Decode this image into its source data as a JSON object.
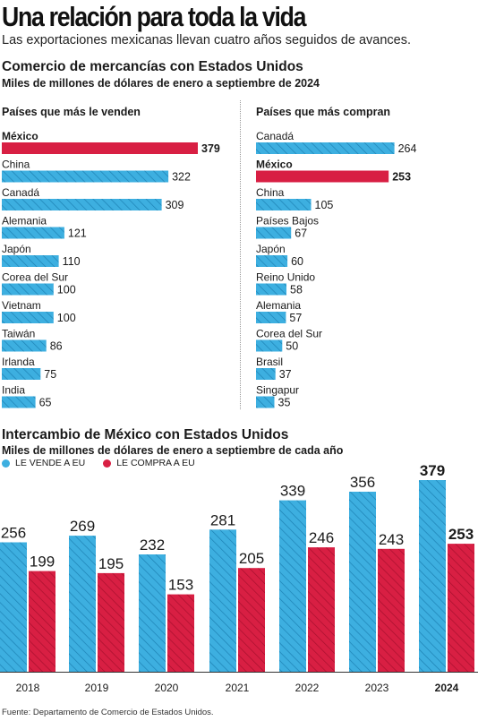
{
  "headline": "Una relación para toda la vida",
  "subheadline": "Las exportaciones mexicanas llevan cuatro años seguidos de avances.",
  "section1": {
    "title": "Comercio de mercancías con Estados Unidos",
    "subtitle": "Miles de millones de dólares de enero a septiembre de 2024"
  },
  "section2": {
    "title": "Intercambio de México con Estados Unidos",
    "subtitle": "Miles de millones de dólares de enero a septiembre de cada año",
    "legend": {
      "sells": "LE VENDE A EU",
      "buys": "LE COMPRA A EU"
    }
  },
  "source": "Fuente: Departamento de Comercio de Estados Unidos.",
  "colors": {
    "blue": "#3dafe0",
    "red": "#d81f43",
    "stripe_blue": "#1d82b5",
    "stripe_red": "#a8102e"
  },
  "chart_data": [
    {
      "type": "bar",
      "orientation": "horizontal",
      "title": "Países que más le venden",
      "categories": [
        "México",
        "China",
        "Canadá",
        "Alemania",
        "Japón",
        "Corea del Sur",
        "Vietnam",
        "Taiwán",
        "Irlanda",
        "India"
      ],
      "values": [
        379,
        322,
        309,
        121,
        110,
        100,
        100,
        86,
        75,
        65
      ],
      "highlight": "México"
    },
    {
      "type": "bar",
      "orientation": "horizontal",
      "title": "Países que más compran",
      "categories": [
        "Canadá",
        "México",
        "China",
        "Países Bajos",
        "Japón",
        "Reino Unido",
        "Alemania",
        "Corea del Sur",
        "Brasil",
        "Singapur"
      ],
      "values": [
        264,
        253,
        105,
        67,
        60,
        58,
        57,
        50,
        37,
        35
      ],
      "highlight": "México"
    },
    {
      "type": "bar",
      "orientation": "vertical",
      "categories": [
        "2018",
        "2019",
        "2020",
        "2021",
        "2022",
        "2023",
        "2024"
      ],
      "series": [
        {
          "name": "LE VENDE A EU",
          "values": [
            256,
            269,
            232,
            281,
            339,
            356,
            379
          ]
        },
        {
          "name": "LE COMPRA A EU",
          "values": [
            199,
            195,
            153,
            205,
            246,
            243,
            253
          ]
        }
      ],
      "highlight_category": "2024"
    }
  ]
}
